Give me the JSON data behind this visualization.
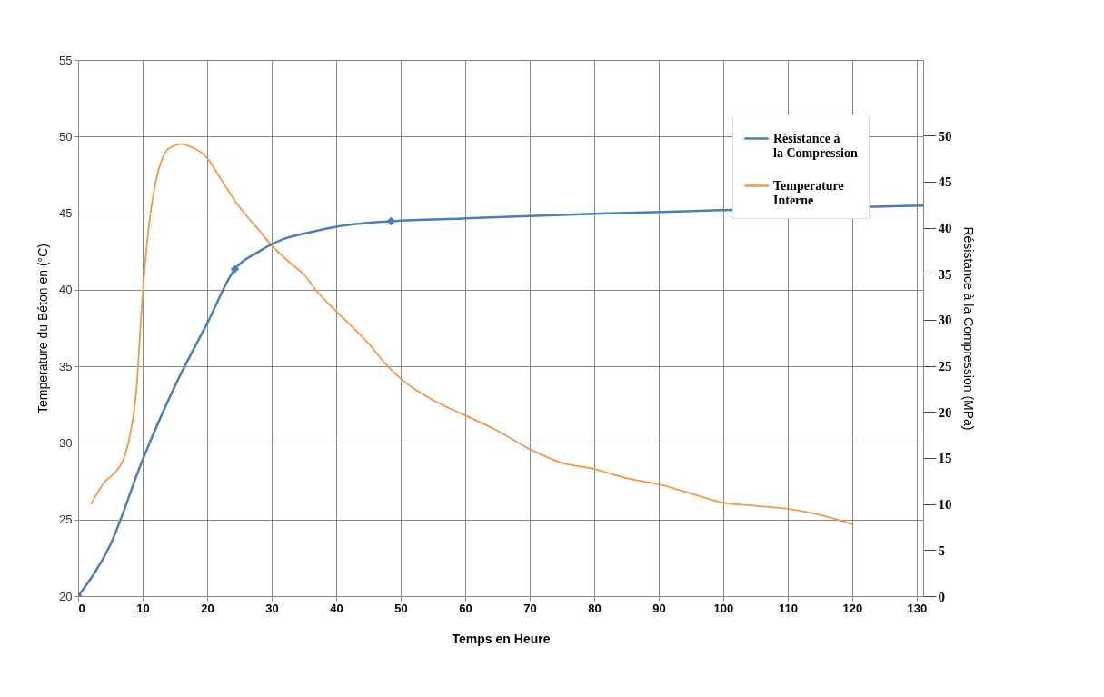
{
  "chart_data": {
    "type": "line",
    "xlabel": "Temps en Heure",
    "ylabel": "Temperature du Béton en (°C)",
    "y2label": "Résistance à la Compression (MPa)",
    "xlim": [
      0,
      131
    ],
    "xticks": [
      0,
      10,
      20,
      30,
      40,
      50,
      60,
      70,
      80,
      90,
      100,
      110,
      120,
      130
    ],
    "ylim": [
      20,
      55
    ],
    "yticks": [
      20,
      25,
      30,
      35,
      40,
      45,
      50,
      55
    ],
    "y2lim": [
      0,
      58.2
    ],
    "y2ticks": [
      0,
      5,
      10,
      15,
      20,
      25,
      30,
      35,
      40,
      45,
      50
    ],
    "grid": true,
    "legend": "top right",
    "line_style": "solid",
    "series": [
      {
        "name": "Résistance à\nla Compression",
        "color": "#4a7ebb",
        "axis": "y2",
        "marker": "none",
        "x": [
          0,
          5,
          10,
          15,
          20,
          24.3,
          28,
          32,
          36,
          40,
          48.5,
          60,
          80,
          100,
          131
        ],
        "values": [
          0,
          5.6,
          14.8,
          22.8,
          29.6,
          35.5,
          37.4,
          38.8,
          39.5,
          40.1,
          40.7,
          41.0,
          41.5,
          41.9,
          42.4
        ]
      },
      {
        "type": "scatter",
        "color": "#4a7ebb",
        "axis": "y2",
        "marker": "diamond",
        "x": [
          0,
          24.3,
          48.5
        ],
        "values": [
          0,
          35.5,
          40.7
        ]
      },
      {
        "name": "Temperature\n Interne",
        "color": "#f79646",
        "axis": "y",
        "marker": "none",
        "x": [
          2,
          4,
          6,
          7,
          8,
          9,
          10,
          11,
          12,
          13,
          14,
          16,
          17,
          20,
          22,
          25,
          28,
          30,
          33,
          35,
          37,
          40,
          45,
          48,
          50,
          55,
          60,
          65,
          70,
          75,
          80,
          85,
          90,
          95,
          100,
          105,
          110,
          115,
          120
        ],
        "values": [
          26.0,
          27.4,
          28.2,
          28.9,
          30.4,
          33.3,
          39.7,
          44.3,
          47.0,
          48.5,
          49.2,
          49.5,
          49.4,
          48.6,
          47.3,
          45.4,
          43.9,
          42.9,
          41.7,
          41.0,
          39.9,
          38.6,
          36.5,
          35.0,
          34.2,
          32.8,
          31.8,
          30.8,
          29.6,
          28.7,
          28.3,
          27.7,
          27.3,
          26.7,
          26.1,
          25.9,
          25.7,
          25.3,
          24.7
        ]
      }
    ]
  }
}
